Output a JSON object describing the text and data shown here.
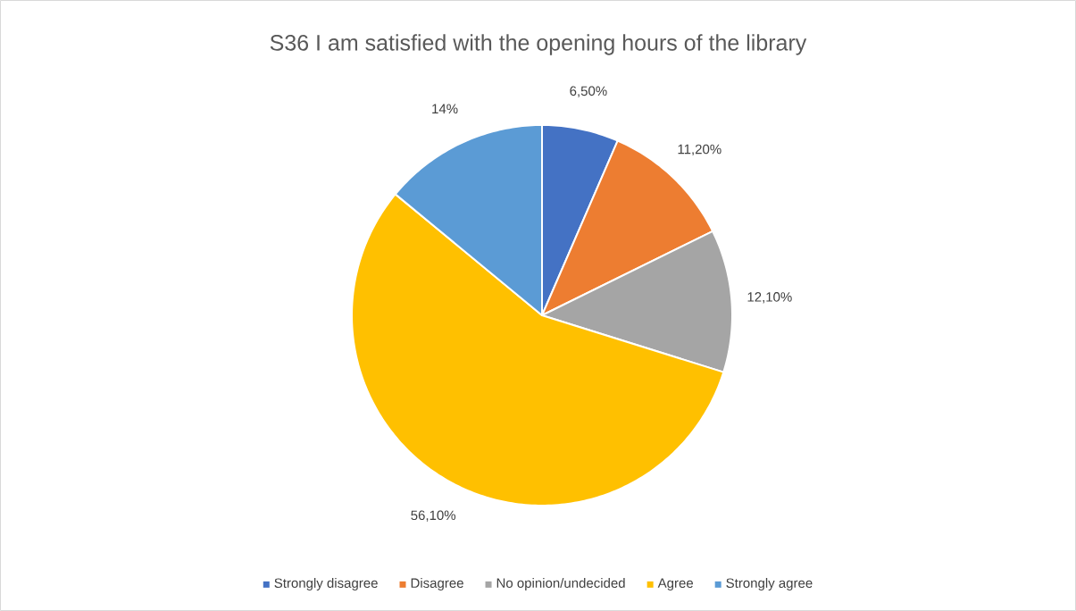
{
  "chart_data": {
    "type": "pie",
    "title": "S36 I am satisfied with the opening hours of the library",
    "categories": [
      "Strongly disagree",
      "Disagree",
      "No opinion/undecided",
      "Agree",
      "Strongly agree"
    ],
    "values": [
      6.5,
      11.2,
      12.1,
      56.1,
      14
    ],
    "value_labels": [
      "6,50%",
      "11,20%",
      "12,10%",
      "56,10%",
      "14%"
    ],
    "colors": [
      "#4472c4",
      "#ed7d31",
      "#a5a5a5",
      "#ffc000",
      "#5b9bd5"
    ],
    "legend": "bottom"
  }
}
